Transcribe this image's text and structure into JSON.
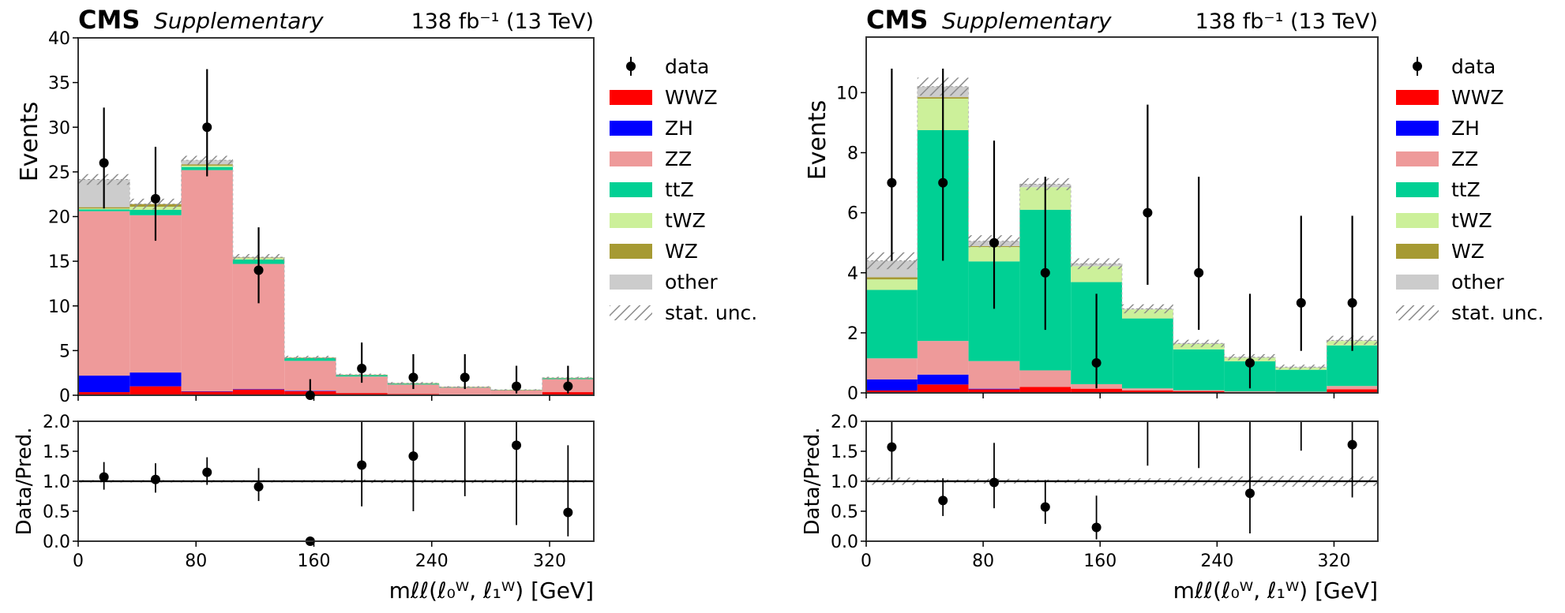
{
  "chart_data": [
    {
      "type": "bar",
      "stacked": true,
      "title_left": "CMS",
      "title_left_sub": "Supplementary",
      "title_right": "138 fb⁻¹ (13 TeV)",
      "xlabel": "mℓℓ(ℓ₀ᵂ, ℓ₁ᵂ) [GeV]",
      "ylabel": "Events",
      "ratio_ylabel": "Data/Pred.",
      "xlim": [
        0,
        350
      ],
      "ylim": [
        0,
        40
      ],
      "ratio_ylim": [
        0,
        2
      ],
      "bin_edges": [
        0,
        35,
        70,
        105,
        140,
        175,
        210,
        245,
        280,
        315,
        350
      ],
      "xticks": [
        0,
        80,
        160,
        240,
        320
      ],
      "yticks": [
        0,
        5,
        10,
        15,
        20,
        25,
        30,
        35,
        40
      ],
      "ratio_yticks": [
        0.0,
        0.5,
        1.0,
        1.5,
        2.0
      ],
      "series": [
        {
          "name": "WWZ",
          "color": "#ff0000",
          "values": [
            0.35,
            1.0,
            0.4,
            0.65,
            0.45,
            0.25,
            0.15,
            0.1,
            0.05,
            0.35
          ]
        },
        {
          "name": "ZH",
          "color": "#0000ff",
          "values": [
            1.85,
            1.55,
            0.05,
            0.05,
            0.05,
            0.0,
            0.0,
            0.0,
            0.0,
            0.0
          ]
        },
        {
          "name": "ZZ",
          "color": "#ee9a9a",
          "values": [
            18.4,
            17.6,
            24.75,
            14.0,
            3.35,
            1.85,
            1.05,
            0.75,
            0.5,
            1.45
          ]
        },
        {
          "name": "ttZ",
          "color": "#00d094",
          "values": [
            0.2,
            0.6,
            0.35,
            0.5,
            0.3,
            0.15,
            0.1,
            0.05,
            0.03,
            0.1
          ]
        },
        {
          "name": "tWZ",
          "color": "#ccf09a",
          "values": [
            0.1,
            0.35,
            0.15,
            0.15,
            0.05,
            0.03,
            0.03,
            0.02,
            0.01,
            0.03
          ]
        },
        {
          "name": "WZ",
          "color": "#a69a33",
          "values": [
            0.15,
            0.3,
            0.15,
            0.05,
            0.02,
            0.02,
            0.02,
            0.01,
            0.01,
            0.02
          ]
        },
        {
          "name": "other",
          "color": "#cccccc",
          "values": [
            3.1,
            0.0,
            0.45,
            0.05,
            0.0,
            0.0,
            0.0,
            0.0,
            0.0,
            0.0
          ]
        }
      ],
      "stat_unc": [
        0.6,
        0.6,
        0.5,
        0.35,
        0.2,
        0.12,
        0.12,
        0.08,
        0.08,
        0.12
      ],
      "data": {
        "name": "data",
        "x": [
          17.5,
          52.5,
          87.5,
          122.5,
          157.5,
          192.5,
          227.5,
          262.5,
          297.5,
          332.5
        ],
        "values": [
          26,
          22,
          30,
          14,
          0,
          3,
          2,
          2,
          1,
          1
        ],
        "err_low": [
          5.1,
          4.7,
          5.5,
          3.7,
          0,
          1.6,
          1.3,
          1.3,
          0.8,
          0.8
        ],
        "err_high": [
          6.2,
          5.8,
          6.5,
          4.8,
          1.8,
          2.9,
          2.6,
          2.6,
          2.3,
          2.3
        ]
      },
      "ratio": {
        "values": [
          1.07,
          1.03,
          1.15,
          0.91,
          0.0,
          1.27,
          1.42,
          null,
          1.6,
          0.48
        ],
        "err_low": [
          0.21,
          0.22,
          0.21,
          0.24,
          0,
          0.69,
          0.92,
          1.25,
          1.33,
          0.4
        ],
        "err_high": [
          0.25,
          0.27,
          0.25,
          0.31,
          0,
          1.0,
          1.0,
          1.0,
          1.0,
          1.12
        ],
        "band": [
          0.02,
          0.02,
          0.02,
          0.02,
          0.02,
          0.03,
          0.03,
          0.03,
          0.03,
          0.02
        ],
        "arrow_only": [
          false,
          false,
          false,
          false,
          false,
          false,
          false,
          true,
          false,
          false
        ]
      },
      "legend_position": "outside-right"
    },
    {
      "type": "bar",
      "stacked": true,
      "title_left": "CMS",
      "title_left_sub": "Supplementary",
      "title_right": "138 fb⁻¹ (13 TeV)",
      "xlabel": "mℓℓ(ℓ₀ᵂ, ℓ₁ᵂ) [GeV]",
      "ylabel": "Events",
      "ratio_ylabel": "Data/Pred.",
      "xlim": [
        0,
        350
      ],
      "ylim": [
        0,
        11.85
      ],
      "ratio_ylim": [
        0,
        2
      ],
      "bin_edges": [
        0,
        35,
        70,
        105,
        140,
        175,
        210,
        245,
        280,
        315,
        350
      ],
      "xticks": [
        0,
        80,
        160,
        240,
        320
      ],
      "yticks": [
        0,
        2,
        4,
        6,
        8,
        10
      ],
      "ratio_yticks": [
        0.0,
        0.5,
        1.0,
        1.5,
        2.0
      ],
      "series": [
        {
          "name": "WWZ",
          "color": "#ff0000",
          "values": [
            0.08,
            0.28,
            0.12,
            0.2,
            0.14,
            0.08,
            0.06,
            0.03,
            0.02,
            0.12
          ]
        },
        {
          "name": "ZH",
          "color": "#0000ff",
          "values": [
            0.37,
            0.33,
            0.02,
            0.0,
            0.0,
            0.0,
            0.0,
            0.0,
            0.0,
            0.0
          ]
        },
        {
          "name": "ZZ",
          "color": "#ee9a9a",
          "values": [
            0.7,
            1.12,
            0.92,
            0.55,
            0.15,
            0.07,
            0.03,
            0.02,
            0.02,
            0.11
          ]
        },
        {
          "name": "ttZ",
          "color": "#00d094",
          "values": [
            2.28,
            7.02,
            3.32,
            5.35,
            3.4,
            2.33,
            1.36,
            1.0,
            0.73,
            1.35
          ]
        },
        {
          "name": "tWZ",
          "color": "#ccf09a",
          "values": [
            0.35,
            1.05,
            0.48,
            0.75,
            0.53,
            0.3,
            0.18,
            0.12,
            0.07,
            0.15
          ]
        },
        {
          "name": "WZ",
          "color": "#a69a33",
          "values": [
            0.07,
            0.05,
            0.03,
            0.0,
            0.0,
            0.0,
            0.0,
            0.0,
            0.0,
            0.0
          ]
        },
        {
          "name": "other",
          "color": "#cccccc",
          "values": [
            0.55,
            0.35,
            0.16,
            0.1,
            0.08,
            0.02,
            0.02,
            0.02,
            0.02,
            0.02
          ]
        }
      ],
      "stat_unc": [
        0.28,
        0.3,
        0.2,
        0.2,
        0.18,
        0.15,
        0.12,
        0.1,
        0.08,
        0.15
      ],
      "data": {
        "name": "data",
        "x": [
          17.5,
          52.5,
          87.5,
          122.5,
          157.5,
          192.5,
          227.5,
          262.5,
          297.5,
          332.5
        ],
        "values": [
          7,
          7,
          5,
          4,
          1,
          6,
          4,
          1,
          3,
          3
        ],
        "err_low": [
          2.6,
          2.6,
          2.2,
          1.9,
          0.85,
          2.4,
          1.9,
          0.85,
          1.6,
          1.6
        ],
        "err_high": [
          3.8,
          3.8,
          3.4,
          3.2,
          2.3,
          3.6,
          3.2,
          2.3,
          2.9,
          2.9
        ]
      },
      "ratio": {
        "values": [
          1.57,
          0.68,
          0.98,
          0.57,
          0.23,
          null,
          null,
          0.8,
          null,
          1.61
        ],
        "err_low": [
          0.55,
          0.26,
          0.43,
          0.28,
          0.2,
          0.74,
          0.78,
          0.67,
          0.49,
          0.88
        ],
        "err_high": [
          0.85,
          0.37,
          0.66,
          0.45,
          0.53,
          1.0,
          1.0,
          1.83,
          1.0,
          1.0
        ],
        "band": [
          0.06,
          0.03,
          0.04,
          0.03,
          0.04,
          0.05,
          0.07,
          0.08,
          0.09,
          0.08
        ],
        "arrow_only": [
          false,
          false,
          false,
          false,
          false,
          true,
          true,
          false,
          true,
          false
        ]
      },
      "legend_position": "outside-right"
    }
  ],
  "legend": {
    "items": [
      {
        "label": "data",
        "kind": "marker"
      },
      {
        "label": "WWZ",
        "kind": "patch",
        "color": "#ff0000"
      },
      {
        "label": "ZH",
        "kind": "patch",
        "color": "#0000ff"
      },
      {
        "label": "ZZ",
        "kind": "patch",
        "color": "#ee9a9a"
      },
      {
        "label": "ttZ",
        "kind": "patch",
        "color": "#00d094"
      },
      {
        "label": "tWZ",
        "kind": "patch",
        "color": "#ccf09a"
      },
      {
        "label": "WZ",
        "kind": "patch",
        "color": "#a69a33"
      },
      {
        "label": "other",
        "kind": "patch",
        "color": "#cccccc"
      },
      {
        "label": "stat. unc.",
        "kind": "hatch"
      }
    ]
  }
}
